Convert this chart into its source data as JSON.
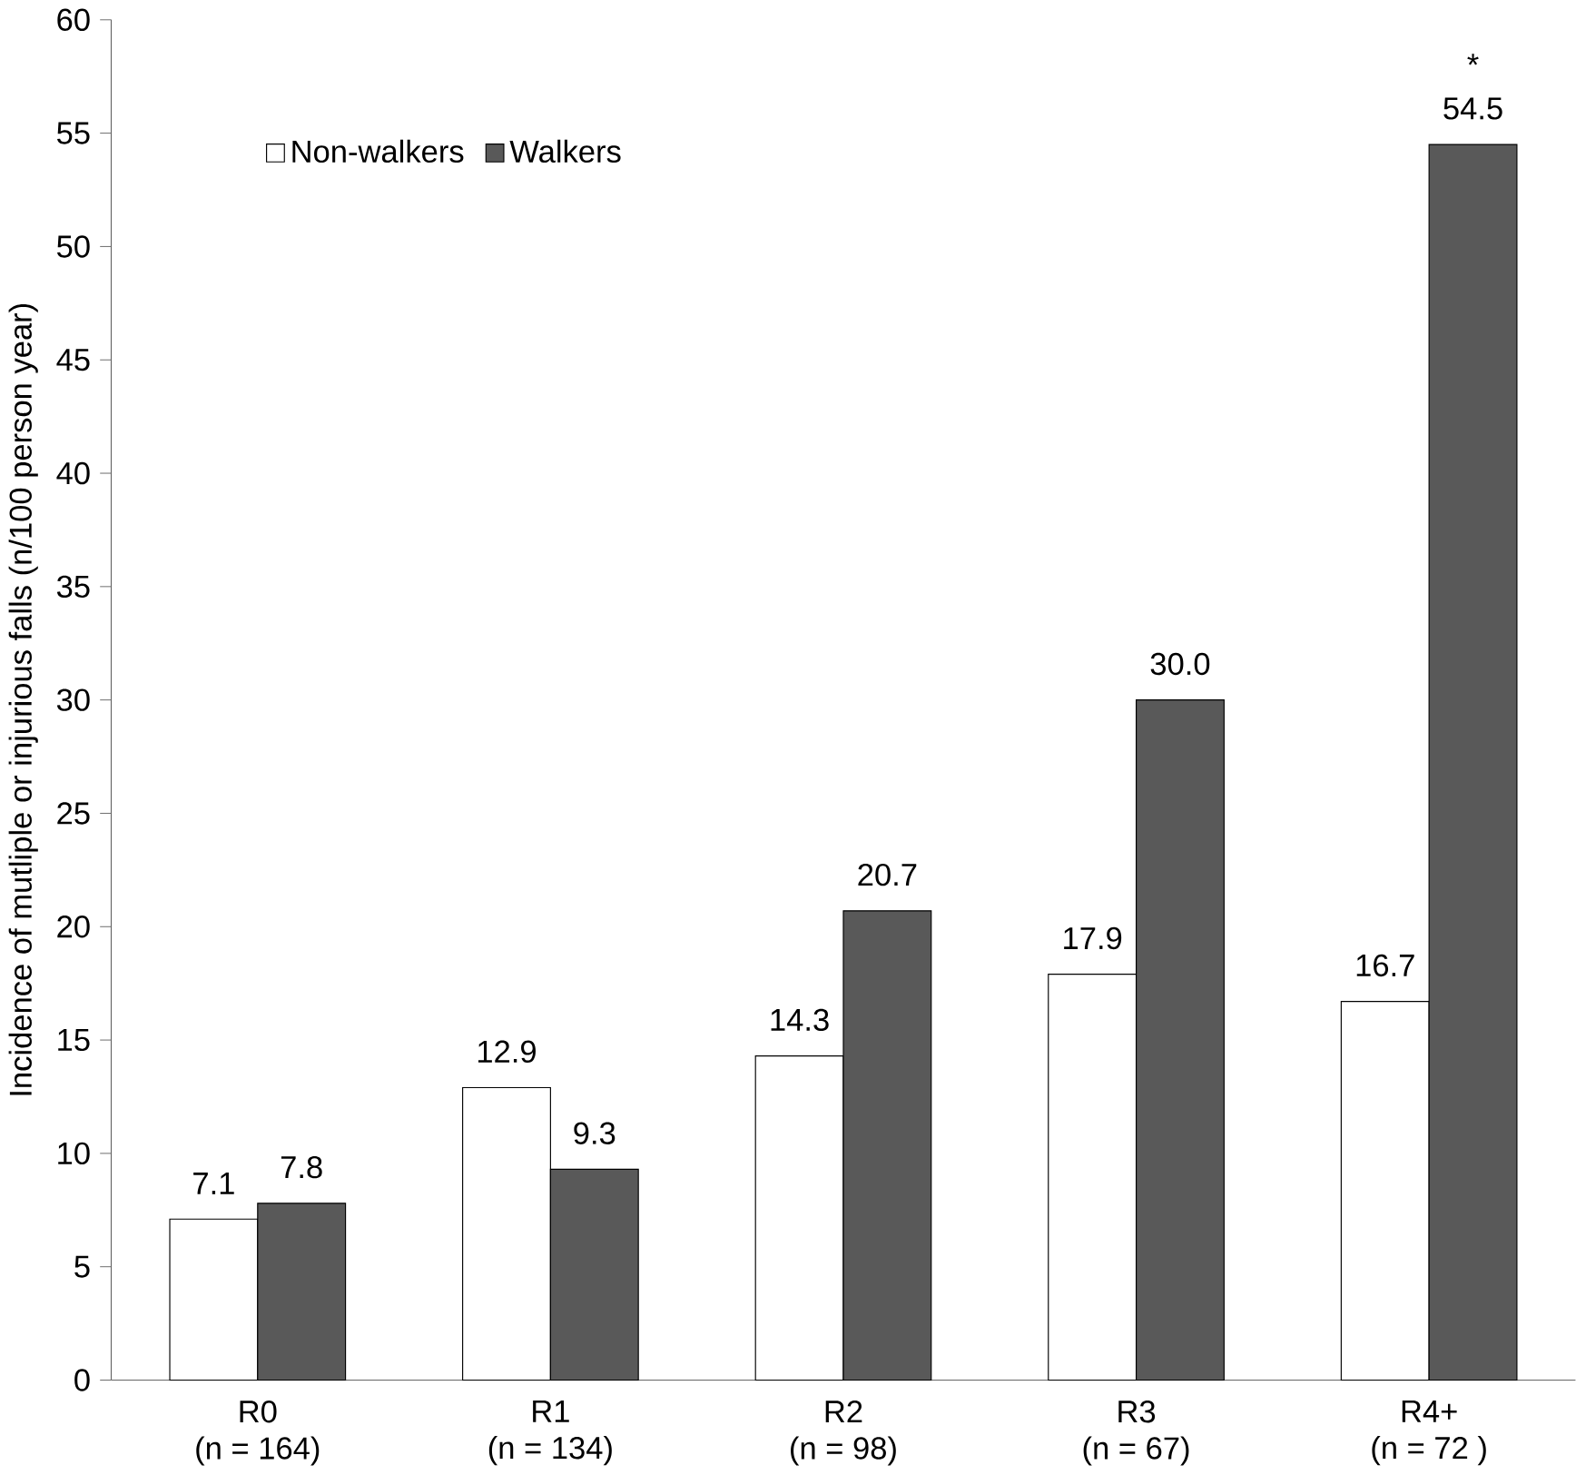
{
  "chart_data": {
    "type": "bar",
    "ylabel": "Incidence of mutliple or injurious falls (n/100 person year)",
    "categories": [
      "R0\n(n = 164)",
      "R1\n(n = 134)",
      "R2\n(n = 98)",
      "R3\n(n = 67)",
      "R4+\n(n = 72 )"
    ],
    "series": [
      {
        "name": "Non-walkers",
        "color": "#ffffff",
        "values": [
          7.1,
          12.9,
          14.3,
          17.9,
          16.7
        ],
        "value_labels": [
          "7.1",
          "12.9",
          "14.3",
          "17.9",
          "16.7"
        ]
      },
      {
        "name": "Walkers",
        "color": "#595959",
        "values": [
          7.8,
          9.3,
          20.7,
          30.0,
          54.5
        ],
        "value_labels": [
          "7.8",
          "9.3",
          "20.7",
          "30.0",
          "54.5"
        ]
      }
    ],
    "ylim": [
      0,
      60
    ],
    "yticks": [
      0,
      5,
      10,
      15,
      20,
      25,
      30,
      35,
      40,
      45,
      50,
      55,
      60
    ],
    "legend": "top left",
    "annotations": [
      "*"
    ]
  }
}
